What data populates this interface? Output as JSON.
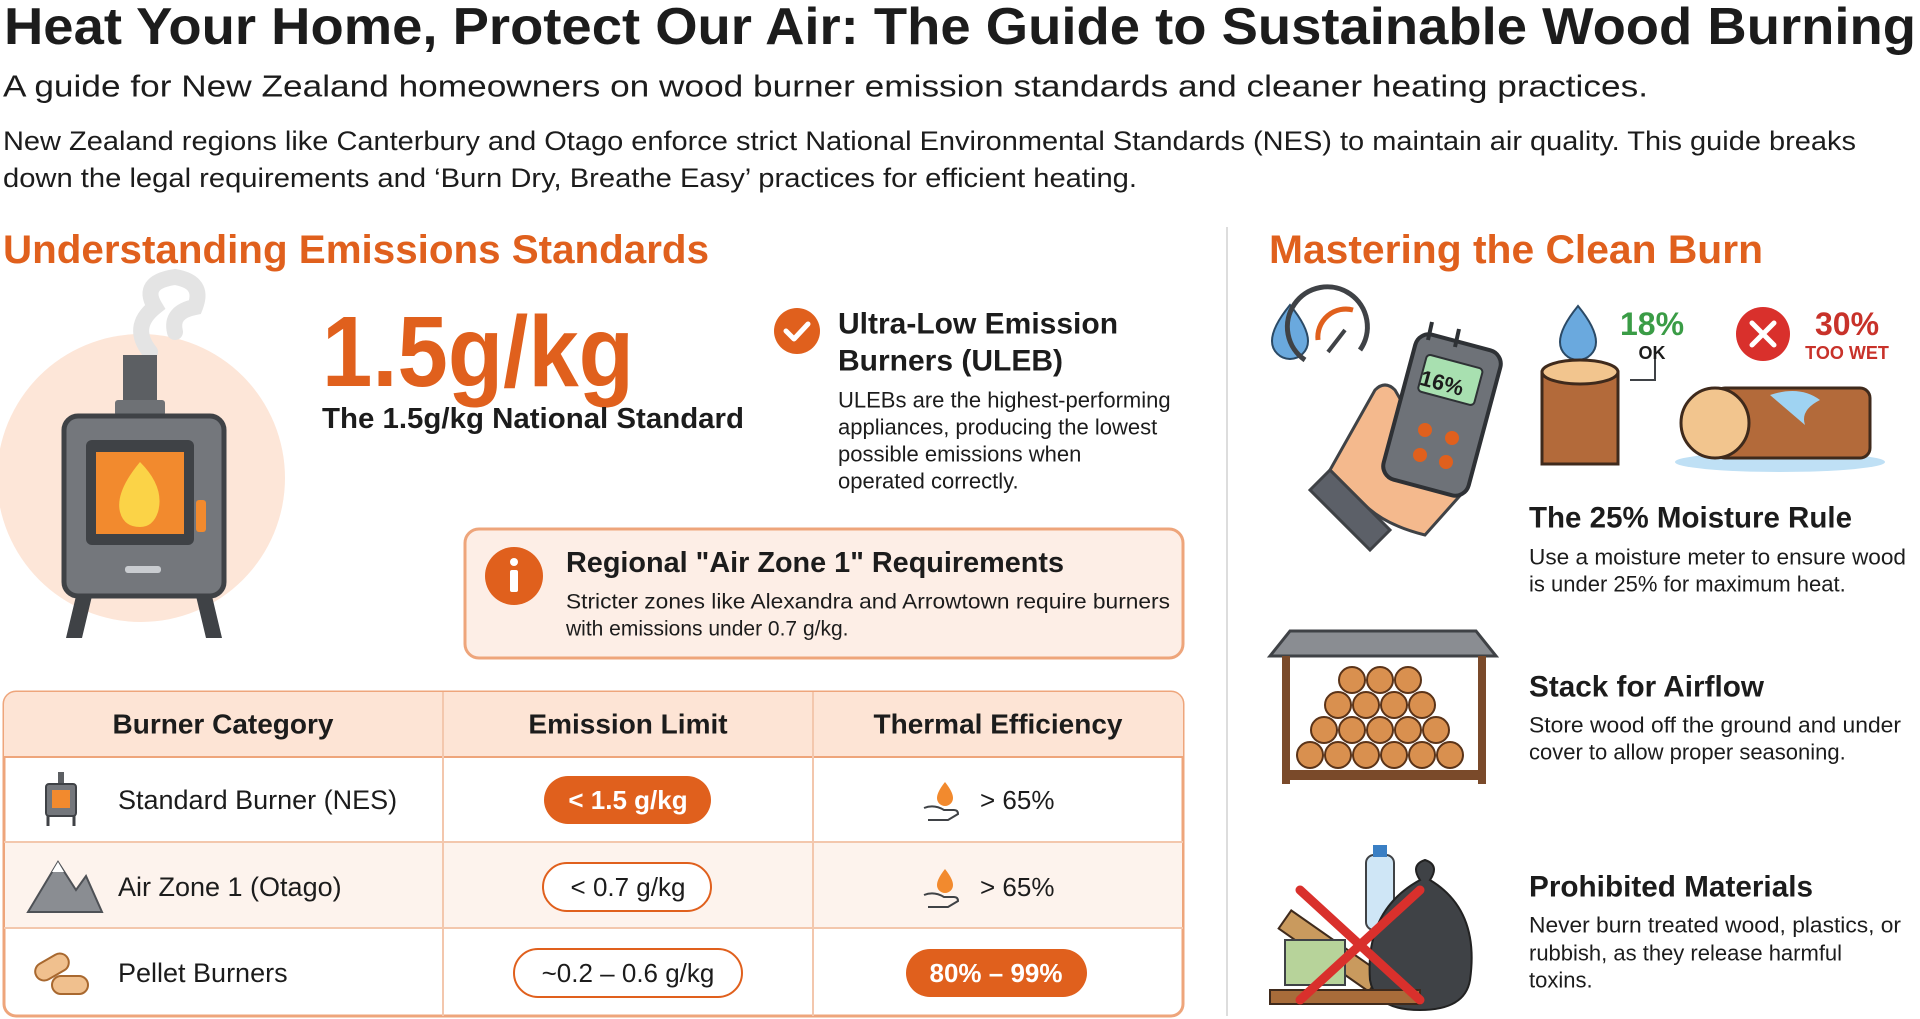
{
  "header": {
    "title": "Heat Your Home, Protect Our Air: The Guide to Sustainable Wood Burning",
    "subtitle": "A guide for New Zealand homeowners on wood burner emission standards and cleaner heating practices.",
    "intro": [
      "New Zealand regions like Canterbury and Otago enforce strict National Environmental Standards (NES) to maintain air quality. This guide breaks",
      "down the legal requirements and ‘Burn Dry, Breathe Easy’ practices for efficient heating."
    ]
  },
  "emissions": {
    "heading": "Understanding Emissions Standards",
    "standard_value": "1.5g/kg",
    "standard_label": "The 1.5g/kg National Standard",
    "uleb": {
      "title": [
        "Ultra-Low Emission",
        "Burners (ULEB)"
      ],
      "description": [
        "ULEBs are the highest-performing",
        "appliances, producing the lowest",
        "possible emissions when",
        "operated correctly."
      ]
    },
    "air_zone": {
      "title": "Regional \"Air Zone 1\" Requirements",
      "description": [
        "Stricter zones like Alexandra and Arrowtown require burners",
        "with emissions under 0.7 g/kg."
      ]
    }
  },
  "table": {
    "headers": [
      "Burner Category",
      "Emission Limit",
      "Thermal Efficiency"
    ],
    "rows": [
      [
        "Standard Burner (NES)",
        "< 1.5 g/kg",
        "> 65%"
      ],
      [
        "Air Zone 1 (Otago)",
        "< 0.7 g/kg",
        "> 65%"
      ],
      [
        "Pellet Burners",
        "~0.2 – 0.6 g/kg",
        "80% – 99%"
      ]
    ]
  },
  "clean_burn": {
    "heading": "Mastering the Clean Burn",
    "meter_reading": "16%",
    "ok": {
      "value": "18%",
      "label": "OK"
    },
    "wet": {
      "value": "30%",
      "label": "TOO WET"
    },
    "items": [
      {
        "title": "The 25% Moisture Rule",
        "description": [
          "Use a moisture meter to ensure wood",
          "is under 25% for maximum heat."
        ]
      },
      {
        "title": "Stack for Airflow",
        "description": [
          "Store wood off the ground and under",
          "cover to allow proper seasoning."
        ]
      },
      {
        "title": "Prohibited Materials",
        "description": [
          "Never burn treated wood, plastics, or",
          "rubbish, as they release harmful",
          "toxins."
        ]
      }
    ]
  }
}
